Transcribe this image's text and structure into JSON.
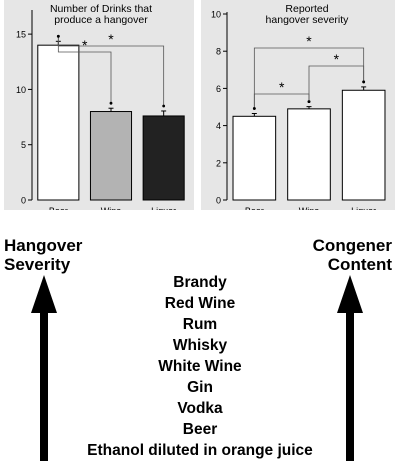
{
  "chart_data": [
    {
      "type": "bar",
      "title": "Number of Drinks that produce a hangover",
      "title_lines": [
        "Number of Drinks that",
        "produce a hangover"
      ],
      "categories": [
        "Beer",
        "Wine",
        "Liquor"
      ],
      "values": [
        14,
        8,
        7.6
      ],
      "errors": [
        0.35,
        0.3,
        0.45
      ],
      "bar_colors": [
        "#ffffff",
        "#b3b3b3",
        "#222222"
      ],
      "ylim": [
        0,
        17
      ],
      "yticks": [
        0,
        5,
        10,
        15
      ],
      "significance": [
        {
          "from": "Beer",
          "to": "Wine",
          "label": "*"
        },
        {
          "from": "Beer",
          "to": "Liquor",
          "label": "*"
        }
      ],
      "grid": false
    },
    {
      "type": "bar",
      "title": "Reported hangover severity",
      "title_lines": [
        "Reported",
        "hangover severity"
      ],
      "categories": [
        "Beer",
        "Wine",
        "Liquor"
      ],
      "values": [
        4.5,
        4.9,
        5.9
      ],
      "errors": [
        0.15,
        0.12,
        0.18
      ],
      "bar_colors": [
        "#ffffff",
        "#ffffff",
        "#ffffff"
      ],
      "ylim": [
        0,
        10
      ],
      "yticks": [
        0,
        2,
        4,
        6,
        8,
        10
      ],
      "significance": [
        {
          "from": "Beer",
          "to": "Wine",
          "label": "*"
        },
        {
          "from": "Wine",
          "to": "Liquor",
          "label": "*"
        },
        {
          "from": "Beer",
          "to": "Liquor",
          "label": "*"
        }
      ],
      "grid": false
    }
  ],
  "labels": {
    "left_lines": [
      "Hangover",
      "Severity"
    ],
    "right_lines": [
      "Congener",
      "Content"
    ]
  },
  "drinks": [
    "Brandy",
    "Red Wine",
    "Rum",
    "Whisky",
    "White Wine",
    "Gin",
    "Vodka",
    "Beer",
    "Ethanol diluted in orange juice"
  ],
  "colors": {
    "panel_bg": "#e6e6e6",
    "arrow": "#000000"
  }
}
